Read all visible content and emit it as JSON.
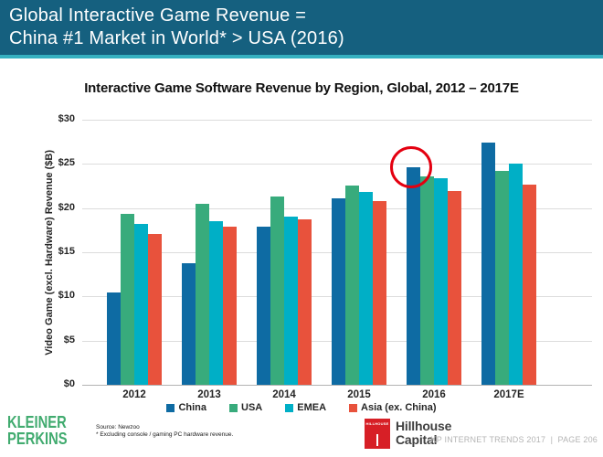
{
  "header": {
    "line1": "Global Interactive Game Revenue =",
    "line2": "China #1 Market in World* > USA (2016)",
    "bg_color": "#15607f",
    "accent_color": "#35b0c0"
  },
  "chart_data": {
    "type": "bar",
    "title": "Interactive Game Software Revenue by Region, Global, 2012 – 2017E",
    "xlabel": "",
    "ylabel": "Video Game (excl. Hardware) Revenue ($B)",
    "ylim": [
      0,
      30
    ],
    "y_ticks": [
      "$30",
      "$25",
      "$20",
      "$15",
      "$10",
      "$5",
      "$0"
    ],
    "y_tick_values": [
      30,
      25,
      20,
      15,
      10,
      5,
      0
    ],
    "grid": "horizontal",
    "legend_position": "bottom",
    "categories": [
      "2012",
      "2013",
      "2014",
      "2015",
      "2016",
      "2017E"
    ],
    "series": [
      {
        "name": "China",
        "color": "#0e6ba3",
        "values": [
          10.5,
          13.8,
          17.9,
          21.1,
          24.6,
          27.4
        ]
      },
      {
        "name": "USA",
        "color": "#38ab7c",
        "values": [
          19.3,
          20.5,
          21.3,
          22.6,
          23.6,
          24.2
        ]
      },
      {
        "name": "EMEA",
        "color": "#00afc6",
        "values": [
          18.2,
          18.5,
          19.0,
          21.8,
          23.4,
          25.0
        ]
      },
      {
        "name": "Asia (ex. China)",
        "color": "#e8523c",
        "values": [
          17.1,
          17.9,
          18.7,
          20.8,
          21.9,
          22.7
        ]
      }
    ],
    "annotation": {
      "shape": "circle",
      "target": "China 2016 bar top",
      "color": "#e40010"
    }
  },
  "footer": {
    "kleiner_line1": "KLEINER",
    "kleiner_line2": "PERKINS",
    "kleiner_color": "#41ab6f",
    "source_line1": "Source: Newzoo",
    "source_line2": "* Excluding console / gaming PC hardware revenue.",
    "hillhouse_box_text": "HILLHOUSE",
    "hillhouse_line1": "Hillhouse",
    "hillhouse_line2": "Capital",
    "hillhouse_color": "#d71f26",
    "page_info": "KP INTERNET TRENDS 2017  |  PAGE 206"
  }
}
